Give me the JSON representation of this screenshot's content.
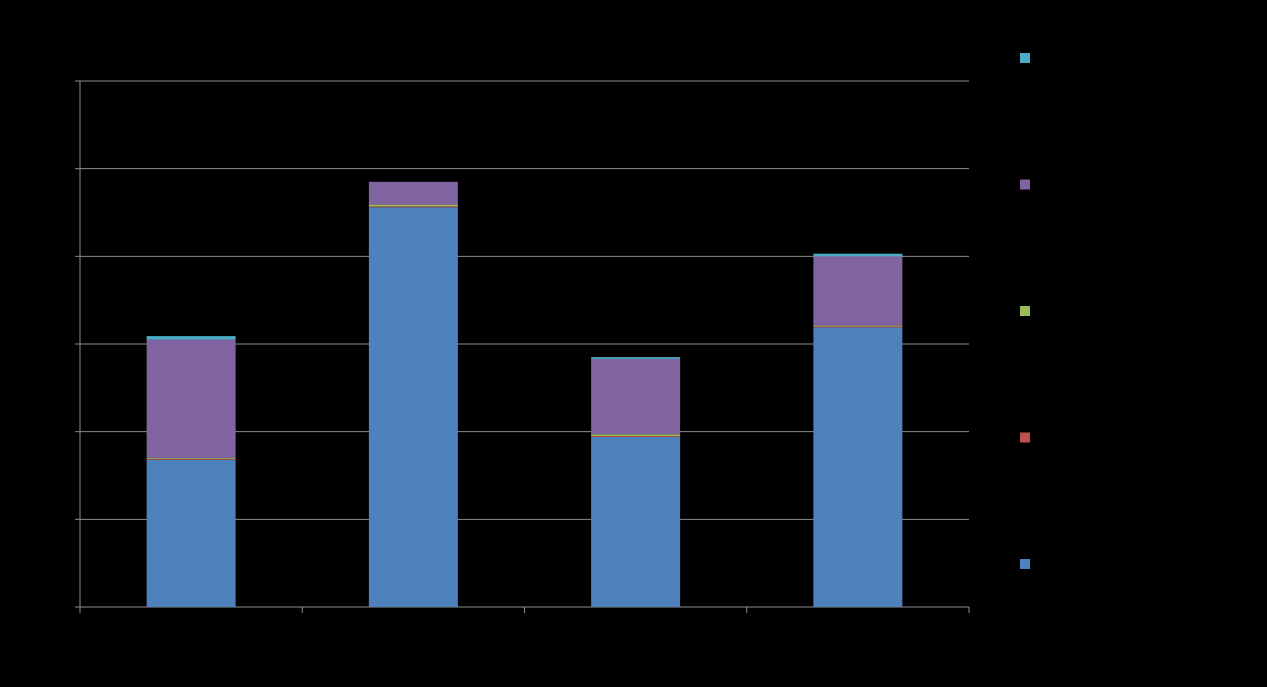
{
  "chart_data": {
    "type": "stacked_bar",
    "categories": [
      null,
      null,
      null,
      null
    ],
    "series": [
      {
        "name": null,
        "color": "#4f81bd",
        "values": [
          1.68,
          4.56,
          1.94,
          3.19
        ]
      },
      {
        "name": null,
        "color": "#c0504d",
        "values": [
          0.01,
          0.01,
          0.01,
          0.01
        ]
      },
      {
        "name": null,
        "color": "#9bbb59",
        "values": [
          0.01,
          0.02,
          0.02,
          0.01
        ]
      },
      {
        "name": null,
        "color": "#8064a2",
        "values": [
          1.35,
          0.26,
          0.86,
          0.79
        ]
      },
      {
        "name": null,
        "color": "#4bacc6",
        "values": [
          0.04,
          0,
          0.02,
          0.03
        ]
      }
    ],
    "ylim": [
      0,
      6
    ],
    "yticks": [
      0,
      1,
      2,
      3,
      4,
      5,
      6
    ],
    "grid": true,
    "legend": "right"
  }
}
